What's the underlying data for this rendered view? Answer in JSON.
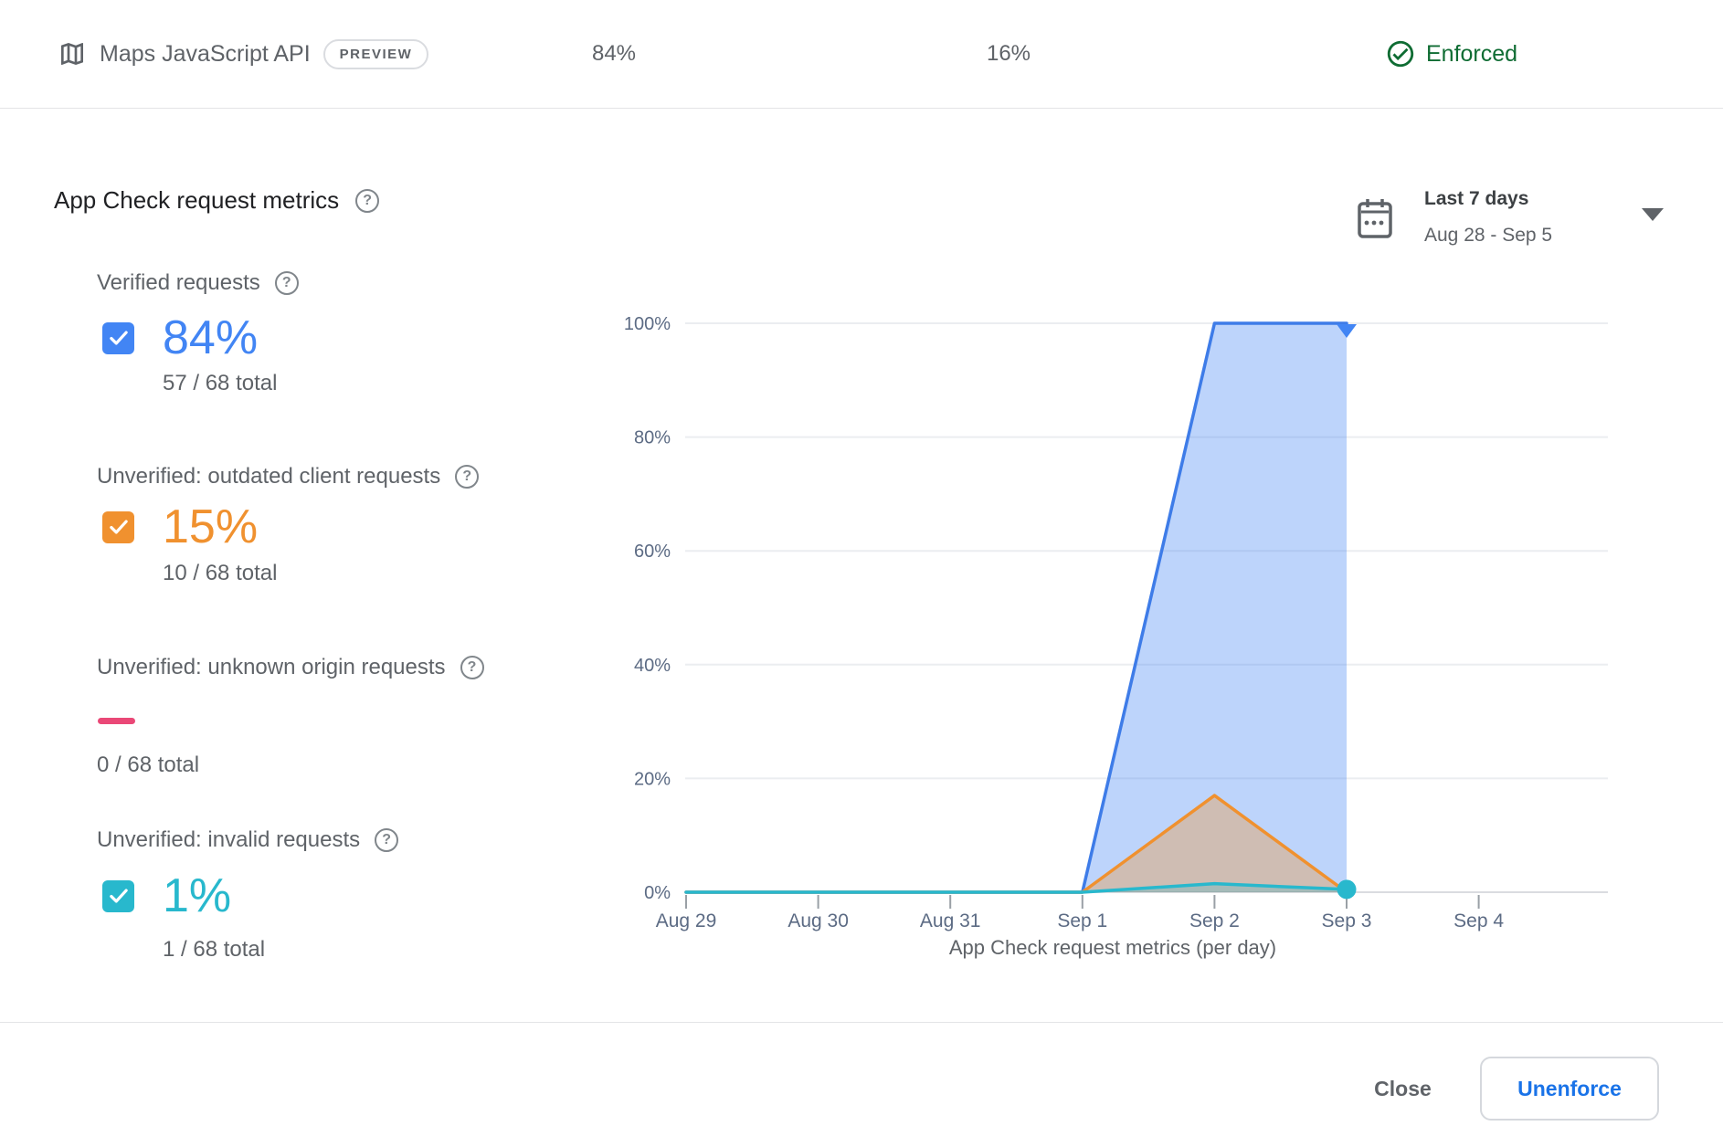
{
  "header": {
    "api_name": "Maps JavaScript API",
    "preview_badge": "PREVIEW",
    "verified_pct": "84%",
    "unverified_pct": "16%",
    "enforcement_status": "Enforced"
  },
  "panel": {
    "title": "App Check request metrics",
    "date_filter": {
      "label": "Last 7 days",
      "range": "Aug 28 - Sep 5"
    }
  },
  "metrics": [
    {
      "label": "Verified requests",
      "value": "84%",
      "total": "57 / 68 total",
      "color": "#4285f4",
      "checked": true
    },
    {
      "label": "Unverified: outdated client requests",
      "value": "15%",
      "total": "10 / 68 total",
      "color": "#f0912f",
      "checked": true
    },
    {
      "label": "Unverified: unknown origin requests",
      "value": "",
      "total": "0 / 68 total",
      "color": "#ea4877",
      "checked": false
    },
    {
      "label": "Unverified: invalid requests",
      "value": "1%",
      "total": "1 / 68 total",
      "color": "#28b8cd",
      "checked": true
    }
  ],
  "chart_data": {
    "type": "area",
    "title": "App Check request metrics (per day)",
    "x_labels": [
      "Aug 29",
      "Aug 30",
      "Aug 31",
      "Sep 1",
      "Sep 2",
      "Sep 3",
      "Sep 4"
    ],
    "y_ticks_pct": [
      0,
      20,
      40,
      60,
      80,
      100
    ],
    "ylim": [
      0,
      100
    ],
    "grid": true,
    "series": [
      {
        "name": "Verified requests",
        "color": "#3e7ce8",
        "fill": "rgba(66,133,244,0.35)",
        "values": [
          0,
          0,
          0,
          0,
          100,
          100
        ],
        "end_marker": "triangle-down",
        "marker_color": "#4285f4"
      },
      {
        "name": "Unverified: outdated client requests",
        "color": "#f0912f",
        "fill": "rgba(240,145,47,0.35)",
        "values": [
          0,
          0,
          0,
          0,
          17,
          0
        ]
      },
      {
        "name": "Unverified: invalid requests",
        "color": "#28b8cd",
        "fill": "rgba(40,184,205,0.25)",
        "values": [
          0,
          0,
          0,
          0,
          1.5,
          0.5
        ],
        "end_marker": "circle",
        "marker_color": "#28b8cd"
      }
    ]
  },
  "footer": {
    "close_label": "Close",
    "unenforce_label": "Unenforce"
  },
  "colors": {
    "accent_blue": "#1a73e8",
    "status_green": "#0f6c33",
    "text_gray": "#5f6368",
    "grid_gray": "#ebedf0"
  }
}
